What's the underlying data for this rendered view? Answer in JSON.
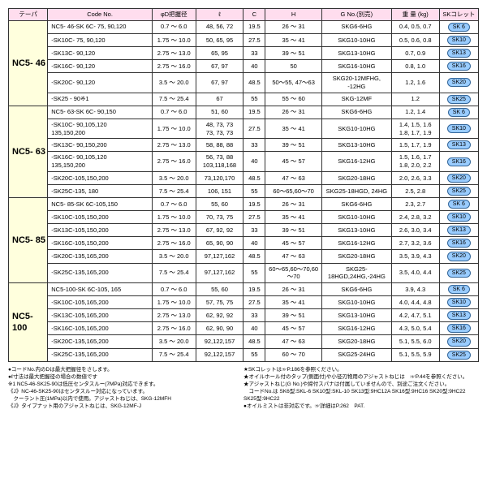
{
  "headers": [
    "テーパ",
    "Code No.",
    "φD把握径",
    "ℓ",
    "C",
    "H",
    "G No.(別売)",
    "重 量 (kg)",
    "SKコレット"
  ],
  "colWidths": [
    "45",
    "120",
    "50",
    "55",
    "25",
    "65",
    "80",
    "55",
    "45"
  ],
  "styling": {
    "header_bg": "#fde",
    "group_bg": "#ffd",
    "badge_bg": "#9cf",
    "border": "#333",
    "title_fontsize": 11,
    "cell_fontsize": 7.5,
    "note_fontsize": 6.5
  },
  "groups": [
    {
      "name": "NC5- 46",
      "rows": [
        {
          "code": "NC5- 46-SK 6C- 75, 90,120",
          "d": "0.7 ～ 6.0",
          "l": "48, 56, 72",
          "c": "19.5",
          "h": "26 ～ 31",
          "g": "SKG6-6HG",
          "w": "0.4, 0.5, 0.7",
          "sk": "SK 6"
        },
        {
          "code": "-SK10C- 75, 90,120",
          "d": "1.75 ～ 10.0",
          "l": "50, 65, 95",
          "c": "27.5",
          "h": "35 ～ 41",
          "g": "SKG10-10HG",
          "w": "0.5, 0.6, 0.8",
          "sk": "SK10"
        },
        {
          "code": "-SK13C- 90,120",
          "d": "2.75 ～ 13.0",
          "l": "65, 95",
          "c": "33",
          "h": "39 ～ 51",
          "g": "SKG13-10HG",
          "w": "0.7, 0.9",
          "sk": "SK13"
        },
        {
          "code": "-SK16C- 90,120",
          "d": "2.75 ～ 16.0",
          "l": "67, 97",
          "c": "40",
          "h": "50",
          "g": "SKG16-10HG",
          "w": "0.8, 1.0",
          "sk": "SK16"
        },
        {
          "code": "-SK20C- 90,120",
          "d": "3.5 ～ 20.0",
          "l": "67, 97",
          "c": "48.5",
          "h": "50～55, 47～63",
          "g": "SKG20-12MFHG, -12HG",
          "w": "1.2, 1.6",
          "sk": "SK20"
        },
        {
          "code": "-SK25 - 90※1",
          "d": "7.5 ～ 25.4",
          "l": "67",
          "c": "55",
          "h": "55 ～ 60",
          "g": "SKG-12MF",
          "w": "1.2",
          "sk": "SK25"
        }
      ]
    },
    {
      "name": "NC5- 63",
      "rows": [
        {
          "code": "NC5- 63-SK 6C- 90,150",
          "d": "0.7 ～ 6.0",
          "l": "51, 60",
          "c": "19.5",
          "h": "26 ～ 31",
          "g": "SKG6-6HG",
          "w": "1.2, 1.4",
          "sk": "SK 6"
        },
        {
          "code": "-SK10C- 90,105,120\n135,150,200",
          "d": "1.75 ～ 10.0",
          "l": "48, 73, 73\n73, 73, 73",
          "c": "27.5",
          "h": "35 ～ 41",
          "g": "SKG10-10HG",
          "w": "1.4, 1.5, 1.6\n1.8, 1.7, 1.9",
          "sk": "SK10"
        },
        {
          "code": "-SK13C- 90,150,200",
          "d": "2.75 ～ 13.0",
          "l": "58, 88, 88",
          "c": "33",
          "h": "39 ～ 51",
          "g": "SKG13-10HG",
          "w": "1.5, 1.7, 1.9",
          "sk": "SK13"
        },
        {
          "code": "-SK16C- 90,105,120\n135,150,200",
          "d": "2.75 ～ 16.0",
          "l": "56, 73, 88\n103,118,168",
          "c": "40",
          "h": "45 ～ 57",
          "g": "SKG16-12HG",
          "w": "1.5, 1.6, 1.7\n1.8, 2.0, 2.2",
          "sk": "SK16"
        },
        {
          "code": "-SK20C-105,150,200",
          "d": "3.5 ～ 20.0",
          "l": "73,120,170",
          "c": "48.5",
          "h": "47 ～ 63",
          "g": "SKG20-18HG",
          "w": "2.0, 2.6, 3.3",
          "sk": "SK20"
        },
        {
          "code": "-SK25C-135, 180",
          "d": "7.5 ～ 25.4",
          "l": "106, 151",
          "c": "55",
          "h": "60～65,60～70",
          "g": "SKG25-18HGD, 24HG",
          "w": "2.5, 2.8",
          "sk": "SK25"
        }
      ]
    },
    {
      "name": "NC5- 85",
      "rows": [
        {
          "code": "NC5- 85-SK 6C-105,150",
          "d": "0.7 ～ 6.0",
          "l": "55, 60",
          "c": "19.5",
          "h": "26 ～ 31",
          "g": "SKG6-6HG",
          "w": "2.3, 2.7",
          "sk": "SK 6"
        },
        {
          "code": "-SK10C-105,150,200",
          "d": "1.75 ～ 10.0",
          "l": "70, 73, 75",
          "c": "27.5",
          "h": "35 ～ 41",
          "g": "SKG10-10HG",
          "w": "2.4, 2.8, 3.2",
          "sk": "SK10"
        },
        {
          "code": "-SK13C-105,150,200",
          "d": "2.75 ～ 13.0",
          "l": "67, 92, 92",
          "c": "33",
          "h": "39 ～ 51",
          "g": "SKG13-10HG",
          "w": "2.6, 3.0, 3.4",
          "sk": "SK13"
        },
        {
          "code": "-SK16C-105,150,200",
          "d": "2.75 ～ 16.0",
          "l": "65, 90, 90",
          "c": "40",
          "h": "45 ～ 57",
          "g": "SKG16-12HG",
          "w": "2.7, 3.2, 3.6",
          "sk": "SK16"
        },
        {
          "code": "-SK20C-135,165,200",
          "d": "3.5 ～ 20.0",
          "l": "97,127,162",
          "c": "48.5",
          "h": "47 ～ 63",
          "g": "SKG20-18HG",
          "w": "3.5, 3.9, 4.3",
          "sk": "SK20"
        },
        {
          "code": "-SK25C-135,165,200",
          "d": "7.5 ～ 25.4",
          "l": "97,127,162",
          "c": "55",
          "h": "60～65,60～70,60～70",
          "g": "SKG25-18HGD,24HG,-24HG",
          "w": "3.5, 4.0, 4.4",
          "sk": "SK25"
        }
      ]
    },
    {
      "name": "NC5-100",
      "rows": [
        {
          "code": "NC5-100-SK 6C-105, 165",
          "d": "0.7 ～ 6.0",
          "l": "55, 60",
          "c": "19.5",
          "h": "26 ～ 31",
          "g": "SKG6-6HG",
          "w": "3.9, 4.3",
          "sk": "SK 6"
        },
        {
          "code": "-SK10C-105,165,200",
          "d": "1.75 ～ 10.0",
          "l": "57, 75, 75",
          "c": "27.5",
          "h": "35 ～ 41",
          "g": "SKG10-10HG",
          "w": "4.0, 4.4, 4.8",
          "sk": "SK10"
        },
        {
          "code": "-SK13C-105,165,200",
          "d": "2.75 ～ 13.0",
          "l": "62, 92, 92",
          "c": "33",
          "h": "39 ～ 51",
          "g": "SKG13-10HG",
          "w": "4.2, 4.7, 5.1",
          "sk": "SK13"
        },
        {
          "code": "-SK16C-105,165,200",
          "d": "2.75 ～ 16.0",
          "l": "62, 90, 90",
          "c": "40",
          "h": "45 ～ 57",
          "g": "SKG16-12HG",
          "w": "4.3, 5.0, 5.4",
          "sk": "SK16"
        },
        {
          "code": "-SK20C-135,165,200",
          "d": "3.5 ～ 20.0",
          "l": "92,122,157",
          "c": "48.5",
          "h": "47 ～ 63",
          "g": "SKG20-18HG",
          "w": "5.1, 5.5, 6.0",
          "sk": "SK20"
        },
        {
          "code": "-SK25C-135,165,200",
          "d": "7.5 ～ 25.4",
          "l": "92,122,157",
          "c": "55",
          "h": "60 ～ 70",
          "g": "SKG25-24HG",
          "w": "5.1, 5.5, 5.9",
          "sk": "SK25"
        }
      ]
    }
  ],
  "notesL": [
    "●コードNo.内のDは最大把握径をさします。",
    "●ℓ寸法は最大把握径の場合の数値です",
    "※1 NC5-46-SK25-90は低圧センタスルー(7MPa)対応できます。",
    "《J》NC-46-SK25-90はセンタスルー対応になっています。",
    "　クーラント圧(1MPa)以内で使用。アジャストねじは、SKG-12MFH",
    "《J》タイプナット用のアジャストねじは、SKG-12MF-J"
  ],
  "notesR": [
    "★SKコレットは☞P.186を参照ください。",
    "★オイルホール付のタップ(側面付)や小径刃物用のアジャストねじは　☞P.44を参照ください。",
    "★アジャストねじ(G No.)や締付スパナは付属していませんので、別途ご注文ください。",
    "　コードNo.は SK6型:SKL-6 SK10型:SKL-10 SK13型:9HC12A SK16型:9HC16 SK20型:9HC22 SK25型:9HC22",
    "●オイルミストは非対応です。☞詳細はP.262　PAT."
  ]
}
